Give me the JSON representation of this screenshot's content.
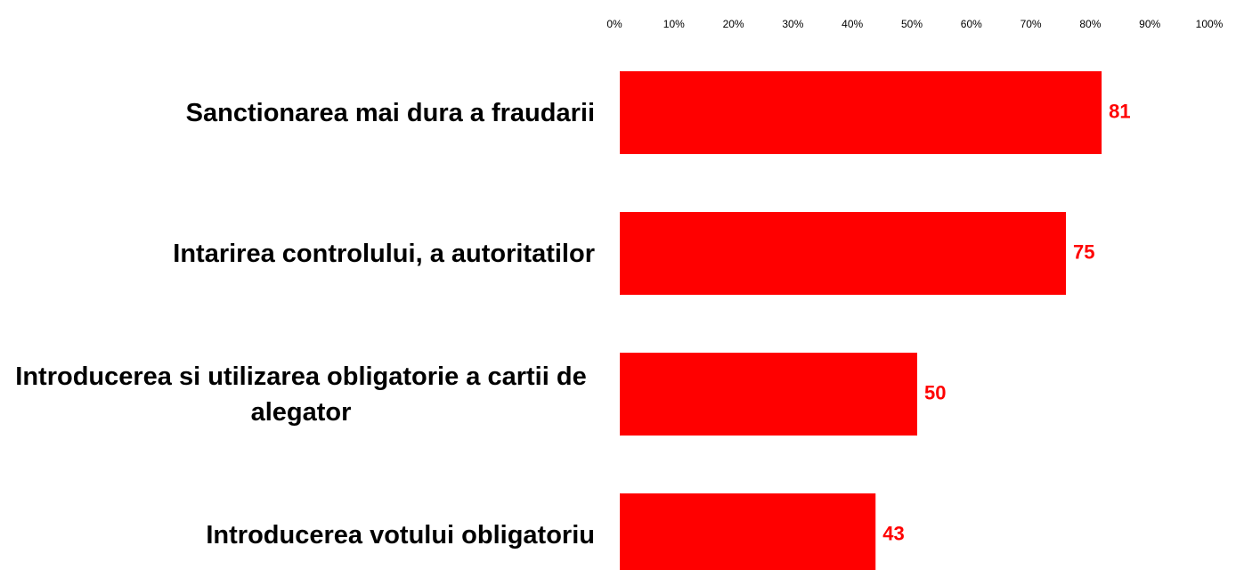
{
  "chart_data": {
    "type": "barh",
    "categories": [
      "Sanctionarea mai dura a fraudarii",
      "Intarirea controlului, a autoritatilor",
      "Introducerea si utilizarea obligatorie a cartii de alegator",
      "Introducerea votului obligatoriu"
    ],
    "values": [
      81,
      75,
      50,
      43
    ],
    "color": "#ff0000",
    "xlim": [
      0,
      100
    ],
    "xticks": [
      {
        "value": 0,
        "label": "0%"
      },
      {
        "value": 10,
        "label": "10%"
      },
      {
        "value": 20,
        "label": "20%"
      },
      {
        "value": 30,
        "label": "30%"
      },
      {
        "value": 40,
        "label": "40%"
      },
      {
        "value": 50,
        "label": "50%"
      },
      {
        "value": 60,
        "label": "60%"
      },
      {
        "value": 70,
        "label": "70%"
      },
      {
        "value": 80,
        "label": "80%"
      },
      {
        "value": 90,
        "label": "90%"
      },
      {
        "value": 100,
        "label": "100%"
      }
    ],
    "grid": false
  }
}
